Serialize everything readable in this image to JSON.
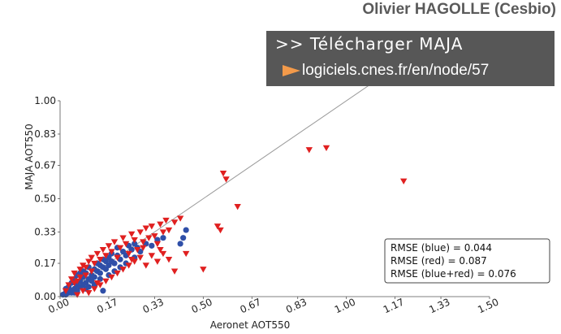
{
  "credit": "Olivier HAGOLLE (Cesbio)",
  "banner": {
    "line1": ">> Télécharger MAJA",
    "link_text": "logiciels.cnes.fr/en/node/57",
    "arrow_icon": "arrow-right-icon",
    "background": "#575757",
    "arrow_color": "#f39a4a"
  },
  "chart_data": {
    "type": "scatter",
    "xlabel": "Aeronet AOT550",
    "ylabel": "MAJA AOT550",
    "xlim": [
      0,
      1.5
    ],
    "ylim": [
      0,
      1.0
    ],
    "x_ticks": [
      "0.00",
      "0.17",
      "0.33",
      "0.50",
      "0.67",
      "0.83",
      "1.00",
      "1.17",
      "1.33",
      "1.50"
    ],
    "y_ticks": [
      "0.00",
      "0.17",
      "0.33",
      "0.50",
      "0.67",
      "0.83",
      "1.00"
    ],
    "grid": false,
    "reference_line": "y = x",
    "rmse_box": [
      "RMSE (blue) = 0.044",
      "RMSE (red) = 0.087",
      "RMSE (blue+red) = 0.076"
    ],
    "rmse_box_position": "bottom-right",
    "series": [
      {
        "marker": "circle",
        "color": "#2f4fa8",
        "points": [
          [
            0.01,
            0.01
          ],
          [
            0.02,
            0.02
          ],
          [
            0.02,
            0.04
          ],
          [
            0.03,
            0.02
          ],
          [
            0.03,
            0.05
          ],
          [
            0.04,
            0.03
          ],
          [
            0.04,
            0.07
          ],
          [
            0.05,
            0.04
          ],
          [
            0.05,
            0.09
          ],
          [
            0.06,
            0.06
          ],
          [
            0.06,
            0.11
          ],
          [
            0.07,
            0.05
          ],
          [
            0.07,
            0.08
          ],
          [
            0.08,
            0.1
          ],
          [
            0.08,
            0.13
          ],
          [
            0.09,
            0.07
          ],
          [
            0.09,
            0.12
          ],
          [
            0.1,
            0.09
          ],
          [
            0.1,
            0.15
          ],
          [
            0.11,
            0.11
          ],
          [
            0.11,
            0.08
          ],
          [
            0.12,
            0.14
          ],
          [
            0.12,
            0.1
          ],
          [
            0.13,
            0.13
          ],
          [
            0.13,
            0.17
          ],
          [
            0.14,
            0.12
          ],
          [
            0.14,
            0.16
          ],
          [
            0.15,
            0.15
          ],
          [
            0.15,
            0.19
          ],
          [
            0.16,
            0.14
          ],
          [
            0.16,
            0.18
          ],
          [
            0.17,
            0.2
          ],
          [
            0.17,
            0.16
          ],
          [
            0.18,
            0.22
          ],
          [
            0.18,
            0.18
          ],
          [
            0.19,
            0.17
          ],
          [
            0.2,
            0.21
          ],
          [
            0.2,
            0.25
          ],
          [
            0.21,
            0.19
          ],
          [
            0.22,
            0.23
          ],
          [
            0.23,
            0.21
          ],
          [
            0.24,
            0.26
          ],
          [
            0.25,
            0.24
          ],
          [
            0.26,
            0.27
          ],
          [
            0.27,
            0.25
          ],
          [
            0.28,
            0.23
          ],
          [
            0.3,
            0.27
          ],
          [
            0.32,
            0.26
          ],
          [
            0.34,
            0.29
          ],
          [
            0.36,
            0.3
          ],
          [
            0.42,
            0.27
          ],
          [
            0.43,
            0.3
          ],
          [
            0.44,
            0.34
          ],
          [
            0.02,
            0.01
          ],
          [
            0.03,
            0.03
          ],
          [
            0.04,
            0.02
          ],
          [
            0.05,
            0.02
          ],
          [
            0.06,
            0.03
          ],
          [
            0.07,
            0.12
          ],
          [
            0.08,
            0.06
          ],
          [
            0.09,
            0.04
          ],
          [
            0.1,
            0.05
          ],
          [
            0.12,
            0.06
          ],
          [
            0.14,
            0.09
          ],
          [
            0.15,
            0.03
          ],
          [
            0.17,
            0.11
          ],
          [
            0.19,
            0.13
          ],
          [
            0.21,
            0.15
          ],
          [
            0.23,
            0.17
          ],
          [
            0.26,
            0.2
          ]
        ]
      },
      {
        "marker": "triangle-down",
        "color": "#e02020",
        "points": [
          [
            0.02,
            0.03
          ],
          [
            0.03,
            0.06
          ],
          [
            0.04,
            0.09
          ],
          [
            0.05,
            0.12
          ],
          [
            0.06,
            0.08
          ],
          [
            0.07,
            0.14
          ],
          [
            0.08,
            0.16
          ],
          [
            0.09,
            0.11
          ],
          [
            0.1,
            0.18
          ],
          [
            0.11,
            0.2
          ],
          [
            0.12,
            0.17
          ],
          [
            0.13,
            0.22
          ],
          [
            0.14,
            0.19
          ],
          [
            0.15,
            0.24
          ],
          [
            0.16,
            0.21
          ],
          [
            0.17,
            0.26
          ],
          [
            0.18,
            0.23
          ],
          [
            0.19,
            0.28
          ],
          [
            0.2,
            0.2
          ],
          [
            0.21,
            0.25
          ],
          [
            0.22,
            0.3
          ],
          [
            0.23,
            0.27
          ],
          [
            0.24,
            0.22
          ],
          [
            0.25,
            0.32
          ],
          [
            0.26,
            0.29
          ],
          [
            0.27,
            0.24
          ],
          [
            0.28,
            0.33
          ],
          [
            0.29,
            0.28
          ],
          [
            0.3,
            0.35
          ],
          [
            0.31,
            0.3
          ],
          [
            0.32,
            0.36
          ],
          [
            0.33,
            0.31
          ],
          [
            0.34,
            0.27
          ],
          [
            0.35,
            0.37
          ],
          [
            0.36,
            0.33
          ],
          [
            0.37,
            0.39
          ],
          [
            0.38,
            0.34
          ],
          [
            0.4,
            0.38
          ],
          [
            0.42,
            0.4
          ],
          [
            0.35,
            0.24
          ],
          [
            0.38,
            0.19
          ],
          [
            0.4,
            0.13
          ],
          [
            0.44,
            0.22
          ],
          [
            0.5,
            0.14
          ],
          [
            0.55,
            0.36
          ],
          [
            0.56,
            0.34
          ],
          [
            0.57,
            0.63
          ],
          [
            0.58,
            0.6
          ],
          [
            0.62,
            0.46
          ],
          [
            0.87,
            0.75
          ],
          [
            0.93,
            0.76
          ],
          [
            1.2,
            0.59
          ],
          [
            0.06,
            0.01
          ],
          [
            0.08,
            0.03
          ],
          [
            0.1,
            0.02
          ],
          [
            0.12,
            0.04
          ],
          [
            0.14,
            0.06
          ],
          [
            0.16,
            0.08
          ],
          [
            0.18,
            0.1
          ],
          [
            0.2,
            0.12
          ],
          [
            0.22,
            0.14
          ],
          [
            0.24,
            0.16
          ],
          [
            0.26,
            0.18
          ],
          [
            0.28,
            0.2
          ],
          [
            0.3,
            0.16
          ],
          [
            0.32,
            0.21
          ],
          [
            0.34,
            0.18
          ],
          [
            0.36,
            0.22
          ],
          [
            0.13,
            0.07
          ],
          [
            0.11,
            0.13
          ],
          [
            0.09,
            0.15
          ],
          [
            0.07,
            0.1
          ],
          [
            0.05,
            0.07
          ],
          [
            0.25,
            0.19
          ],
          [
            0.29,
            0.25
          ]
        ]
      }
    ]
  }
}
